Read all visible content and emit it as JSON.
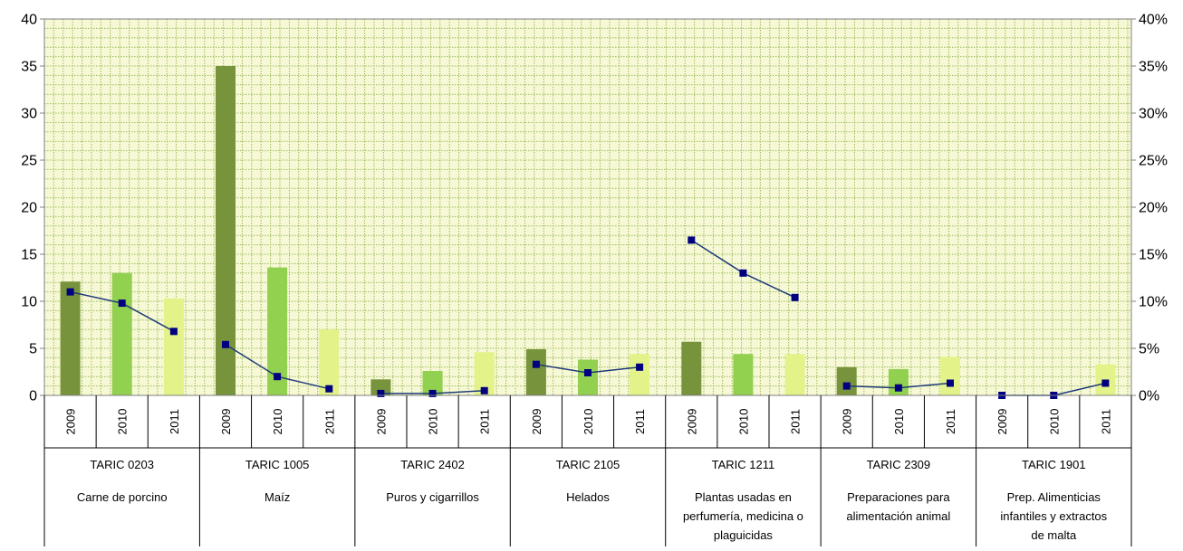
{
  "chart_data": {
    "type": "bar",
    "title": "",
    "xlabel": "",
    "ylabel": "",
    "grid": true,
    "colors": {
      "2009": "#77933c",
      "2010": "#92d050",
      "2011": "#e3f389",
      "line": "#1f3b7a",
      "marker": "#000080",
      "grid": "#9bbb59",
      "plot_bg": "#f7f9d6"
    },
    "y_left": {
      "ylim": [
        0,
        40
      ],
      "ticks": [
        0,
        5,
        10,
        15,
        20,
        25,
        30,
        35,
        40
      ],
      "tick_labels": [
        "0",
        "5",
        "10",
        "15",
        "20",
        "25",
        "30",
        "35",
        "40"
      ]
    },
    "y_right": {
      "ylim": [
        0,
        40
      ],
      "ticks": [
        0,
        5,
        10,
        15,
        20,
        25,
        30,
        35,
        40
      ],
      "tick_labels": [
        "0%",
        "5%",
        "10%",
        "15%",
        "20%",
        "25%",
        "30%",
        "35%",
        "40%"
      ]
    },
    "years": [
      "2009",
      "2010",
      "2011"
    ],
    "groups": [
      {
        "code": "TARIC 0203",
        "name": [
          "Carne de porcino"
        ],
        "bars": [
          12.1,
          13.0,
          10.3
        ],
        "line": [
          11.0,
          9.8,
          6.8
        ]
      },
      {
        "code": "TARIC 1005",
        "name": [
          "Maíz"
        ],
        "bars": [
          35.0,
          13.6,
          7.0
        ],
        "line": [
          5.4,
          2.0,
          0.7
        ]
      },
      {
        "code": "TARIC 2402",
        "name": [
          "Puros y cigarrillos"
        ],
        "bars": [
          1.7,
          2.6,
          4.6
        ],
        "line": [
          0.2,
          0.2,
          0.5
        ]
      },
      {
        "code": "TARIC 2105",
        "name": [
          "Helados"
        ],
        "bars": [
          4.9,
          3.8,
          4.4
        ],
        "line": [
          3.3,
          2.4,
          3.0
        ]
      },
      {
        "code": "TARIC 1211",
        "name": [
          "Plantas usadas en",
          "perfumería, medicina o",
          "plaguicidas"
        ],
        "bars": [
          5.7,
          4.4,
          4.4
        ],
        "line": [
          16.5,
          13.0,
          10.4
        ]
      },
      {
        "code": "TARIC 2309",
        "name": [
          "Preparaciones para",
          "alimentación animal"
        ],
        "bars": [
          3.0,
          2.8,
          4.1
        ],
        "line": [
          1.0,
          0.8,
          1.3
        ]
      },
      {
        "code": "TARIC 1901",
        "name": [
          "Prep. Alimenticias",
          "infantiles y extractos",
          "de malta"
        ],
        "bars": [
          0.0,
          0.0,
          3.3
        ],
        "line": [
          0.0,
          0.0,
          1.3
        ]
      }
    ]
  }
}
